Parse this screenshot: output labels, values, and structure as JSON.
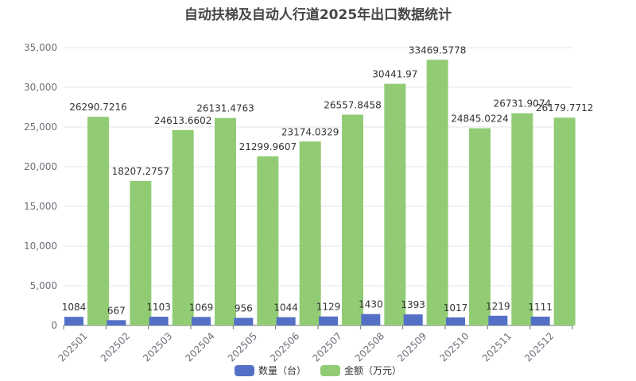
{
  "chart_data": {
    "type": "bar",
    "title": "自动扶梯及自动人行道2025年出口数据统计",
    "categories": [
      "202501",
      "202502",
      "202503",
      "202504",
      "202505",
      "202506",
      "202507",
      "202508",
      "202509",
      "202510",
      "202511",
      "202512"
    ],
    "series": [
      {
        "name": "数量（台）",
        "color": "#5470c6",
        "values": [
          1084,
          667,
          1103,
          1069,
          956,
          1044,
          1129,
          1430,
          1393,
          1017,
          1219,
          1111
        ],
        "labels": [
          "1084",
          "667",
          "1103",
          "1069",
          "956",
          "1044",
          "1129",
          "1430",
          "1393",
          "1017",
          "1219",
          "1111"
        ]
      },
      {
        "name": "金额（万元）",
        "color": "#91cc75",
        "values": [
          26290.7216,
          18207.2757,
          24613.6602,
          26131.4763,
          21299.9607,
          23174.0329,
          26557.8458,
          30441.97,
          33469.5778,
          24845.0224,
          26731.9074,
          26179.7712
        ],
        "labels": [
          "26290.7216",
          "18207.2757",
          "24613.6602",
          "26131.4763",
          "21299.9607",
          "23174.0329",
          "26557.8458",
          "30441.97",
          "33469.5778",
          "24845.0224",
          "26731.9074",
          "26179.7712"
        ]
      }
    ],
    "yticks": [
      "0",
      "5,000",
      "10,000",
      "15,000",
      "20,000",
      "25,000",
      "30,000",
      "35,000"
    ],
    "ylim": [
      0,
      35000
    ],
    "grid": true,
    "legend": "bottom"
  }
}
